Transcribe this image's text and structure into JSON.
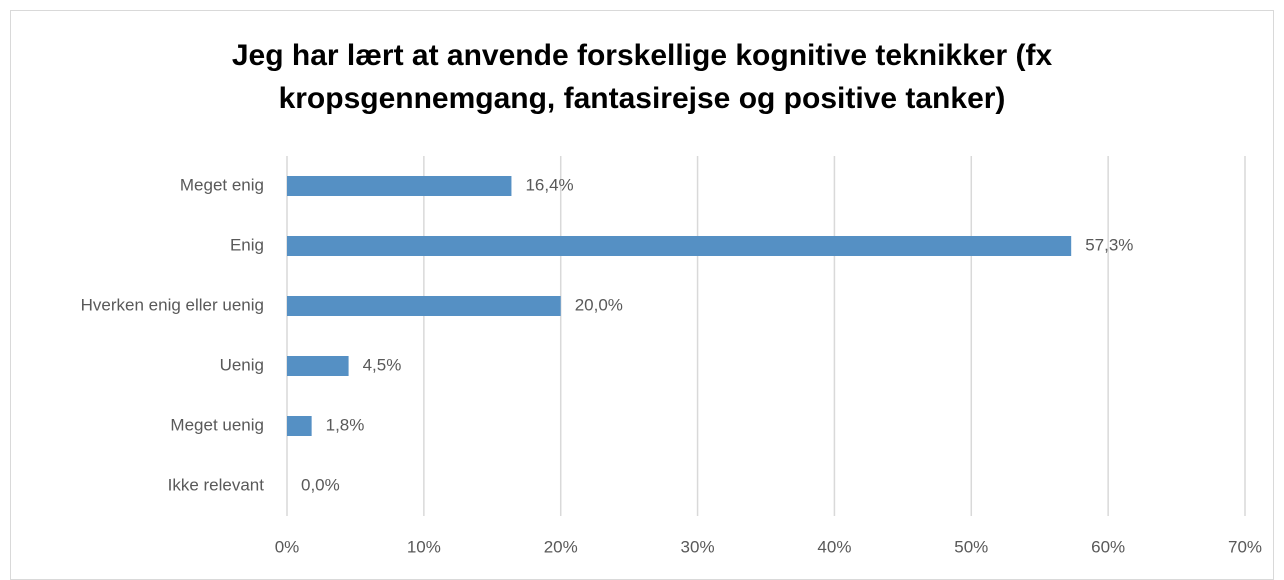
{
  "chart_data": {
    "type": "bar",
    "orientation": "horizontal",
    "title": "Jeg har lært at anvende forskellige kognitive teknikker (fx kropsgennemgang, fantasirejse og positive tanker)",
    "categories": [
      "Meget enig",
      "Enig",
      "Hverken enig eller uenig",
      "Uenig",
      "Meget uenig",
      "Ikke relevant"
    ],
    "values": [
      16.4,
      57.3,
      20.0,
      4.5,
      1.8,
      0.0
    ],
    "value_labels": [
      "16,4%",
      "57,3%",
      "20,0%",
      "4,5%",
      "1,8%",
      "0,0%"
    ],
    "color": "#5590c4",
    "xlim": [
      0,
      70
    ],
    "xticks": [
      {
        "value": 0,
        "label": "0%"
      },
      {
        "value": 10,
        "label": "10%"
      },
      {
        "value": 20,
        "label": "20%"
      },
      {
        "value": 30,
        "label": "30%"
      },
      {
        "value": 40,
        "label": "40%"
      },
      {
        "value": 50,
        "label": "50%"
      },
      {
        "value": 60,
        "label": "60%"
      },
      {
        "value": 70,
        "label": "70%"
      }
    ],
    "grid": true
  }
}
